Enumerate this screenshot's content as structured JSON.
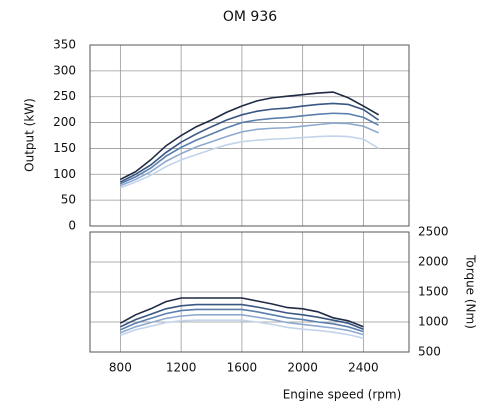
{
  "chart_data": [
    {
      "type": "line",
      "title": "OM 936",
      "y_label": "Output (kW)",
      "x": [
        800,
        900,
        1000,
        1100,
        1200,
        1300,
        1400,
        1500,
        1600,
        1700,
        1800,
        1900,
        2000,
        2100,
        2200,
        2300,
        2400,
        2500
      ],
      "series": [
        {
          "color": "#1f2a44",
          "values": [
            90,
            105,
            128,
            155,
            175,
            192,
            205,
            220,
            232,
            242,
            248,
            251,
            254,
            257,
            259,
            248,
            232,
            215
          ]
        },
        {
          "color": "#3a5683",
          "values": [
            85,
            100,
            118,
            142,
            162,
            178,
            192,
            205,
            215,
            222,
            226,
            228,
            232,
            235,
            237,
            235,
            225,
            205
          ]
        },
        {
          "color": "#5b7fae",
          "values": [
            82,
            95,
            112,
            135,
            152,
            166,
            178,
            190,
            200,
            205,
            208,
            210,
            213,
            216,
            218,
            217,
            210,
            195
          ]
        },
        {
          "color": "#8eaad0",
          "values": [
            78,
            90,
            105,
            125,
            140,
            153,
            163,
            173,
            182,
            187,
            189,
            190,
            193,
            196,
            199,
            198,
            193,
            180
          ]
        },
        {
          "color": "#c3d4ea",
          "values": [
            74,
            85,
            98,
            115,
            128,
            138,
            148,
            157,
            163,
            166,
            168,
            169,
            171,
            173,
            174,
            173,
            168,
            150
          ]
        }
      ],
      "xlim": [
        600,
        2700
      ],
      "ylim": [
        0,
        350
      ],
      "yticks": [
        0,
        50,
        100,
        150,
        200,
        250,
        300,
        350
      ],
      "grid": true
    },
    {
      "type": "line",
      "y_label": "Torque (Nm)",
      "x_label": "Engine speed (rpm)",
      "y_axis_side": "right",
      "x": [
        800,
        900,
        1000,
        1100,
        1200,
        1300,
        1400,
        1500,
        1600,
        1700,
        1800,
        1900,
        2000,
        2100,
        2200,
        2300,
        2400
      ],
      "series": [
        {
          "color": "#1f2a44",
          "values": [
            980,
            1120,
            1220,
            1340,
            1400,
            1400,
            1400,
            1400,
            1400,
            1350,
            1300,
            1240,
            1220,
            1170,
            1070,
            1020,
            920
          ]
        },
        {
          "color": "#3a5683",
          "values": [
            920,
            1040,
            1130,
            1220,
            1270,
            1290,
            1290,
            1290,
            1290,
            1250,
            1200,
            1150,
            1120,
            1080,
            1030,
            980,
            880
          ]
        },
        {
          "color": "#5b7fae",
          "values": [
            870,
            980,
            1060,
            1140,
            1190,
            1210,
            1210,
            1210,
            1210,
            1170,
            1120,
            1070,
            1040,
            1000,
            970,
            920,
            840
          ]
        },
        {
          "color": "#8eaad0",
          "values": [
            820,
            920,
            990,
            1060,
            1100,
            1120,
            1120,
            1120,
            1120,
            1080,
            1040,
            990,
            960,
            930,
            900,
            860,
            790
          ]
        },
        {
          "color": "#c3d4ea",
          "values": [
            780,
            870,
            930,
            990,
            1020,
            1030,
            1030,
            1030,
            1030,
            1000,
            960,
            910,
            880,
            860,
            830,
            790,
            730
          ]
        }
      ],
      "xlim": [
        600,
        2700
      ],
      "xticks": [
        800,
        1200,
        1600,
        2000,
        2400
      ],
      "ylim": [
        500,
        2500
      ],
      "yticks": [
        500,
        1000,
        1500,
        2000,
        2500
      ],
      "grid": true
    }
  ]
}
